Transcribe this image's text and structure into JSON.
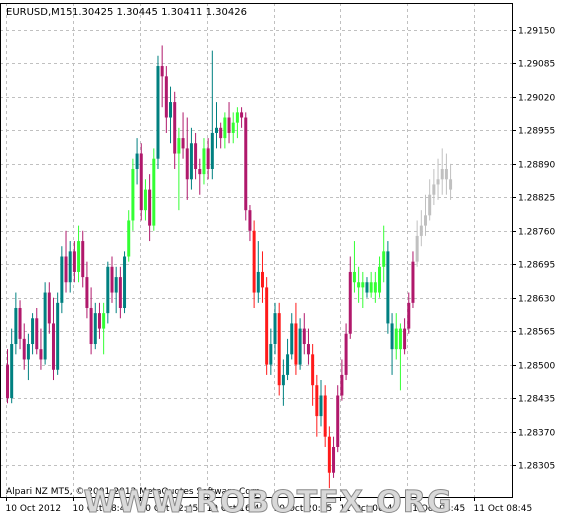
{
  "header": {
    "symbol_timeframe": "EURUSD,M15",
    "ohlc": "1.30425 1.30445 1.30411 1.30426"
  },
  "footer": {
    "copyright": "Alpari NZ MT5, © 2001-2012 MetaQuotes Software Corp.",
    "watermark": "WWW.ROBOTFX.ORG"
  },
  "colors": {
    "background": "#ffffff",
    "grid": "#c0c0c0",
    "axis": "#000000",
    "bull_strong": "#33ff33",
    "bull_weak": "#008080",
    "bear_strong": "#ff1a1a",
    "bear_weak": "#b0186b",
    "neutral": "#c0c0c0"
  },
  "chart_data": {
    "type": "candlestick",
    "ylim": [
      1.2825,
      1.292
    ],
    "y_ticks": [
      "1.29150",
      "1.29085",
      "1.29020",
      "1.28955",
      "1.28890",
      "1.28825",
      "1.28760",
      "1.28695",
      "1.28630",
      "1.28565",
      "1.28500",
      "1.28435",
      "1.28370",
      "1.28305"
    ],
    "x_ticks": [
      {
        "label": "10 Oct 2012",
        "index": 0
      },
      {
        "label": "10 Oct 08:45",
        "index": 16
      },
      {
        "label": "10 Oct 12:45",
        "index": 32
      },
      {
        "label": "10 Oct 16:45",
        "index": 48
      },
      {
        "label": "10 Oct 20:45",
        "index": 64
      },
      {
        "label": "11 Oct 00:45",
        "index": 80
      },
      {
        "label": "11 Oct 04:45",
        "index": 96
      },
      {
        "label": "11 Oct 08:45",
        "index": 112
      }
    ],
    "grid": true,
    "candles": [
      [
        1.285,
        1.2853,
        1.28425,
        1.28435,
        "bear_weak"
      ],
      [
        1.28435,
        1.2857,
        1.28425,
        1.2854,
        "bull_weak"
      ],
      [
        1.2854,
        1.2864,
        1.2852,
        1.2861,
        "bull_weak"
      ],
      [
        1.2861,
        1.28625,
        1.2853,
        1.2855,
        "bear_weak"
      ],
      [
        1.2855,
        1.2858,
        1.2849,
        1.2851,
        "bear_weak"
      ],
      [
        1.2851,
        1.2856,
        1.2847,
        1.2854,
        "bull_weak"
      ],
      [
        1.2854,
        1.286,
        1.2852,
        1.2859,
        "bull_weak"
      ],
      [
        1.2859,
        1.2861,
        1.2852,
        1.2853,
        "bear_weak"
      ],
      [
        1.2853,
        1.2857,
        1.2849,
        1.2851,
        "bear_weak"
      ],
      [
        1.2851,
        1.2866,
        1.285,
        1.2864,
        "bull_weak"
      ],
      [
        1.2864,
        1.2866,
        1.2856,
        1.2858,
        "bear_weak"
      ],
      [
        1.2858,
        1.2863,
        1.2847,
        1.2849,
        "bear_weak"
      ],
      [
        1.2849,
        1.2864,
        1.2848,
        1.2862,
        "bull_weak"
      ],
      [
        1.2862,
        1.2873,
        1.286,
        1.2871,
        "bull_weak"
      ],
      [
        1.2871,
        1.2876,
        1.2864,
        1.2866,
        "bear_weak"
      ],
      [
        1.2866,
        1.2874,
        1.2864,
        1.2872,
        "bull_weak"
      ],
      [
        1.2872,
        1.2874,
        1.2866,
        1.2868,
        "bear_weak"
      ],
      [
        1.2868,
        1.2877,
        1.2866,
        1.2874,
        "bull_strong"
      ],
      [
        1.2874,
        1.2876,
        1.2865,
        1.2867,
        "bear_weak"
      ],
      [
        1.2867,
        1.287,
        1.2859,
        1.2861,
        "bear_weak"
      ],
      [
        1.2861,
        1.2865,
        1.2852,
        1.2854,
        "bear_weak"
      ],
      [
        1.2854,
        1.2862,
        1.2853,
        1.286,
        "bull_weak"
      ],
      [
        1.286,
        1.2862,
        1.2855,
        1.2857,
        "bear_weak"
      ],
      [
        1.2857,
        1.2862,
        1.2852,
        1.286,
        "bull_strong"
      ],
      [
        1.286,
        1.287,
        1.2858,
        1.2869,
        "bull_weak"
      ],
      [
        1.2869,
        1.2871,
        1.2862,
        1.2864,
        "bear_weak"
      ],
      [
        1.2864,
        1.2869,
        1.286,
        1.2867,
        "bull_weak"
      ],
      [
        1.2867,
        1.2869,
        1.2859,
        1.2861,
        "bear_weak"
      ],
      [
        1.2861,
        1.2872,
        1.286,
        1.2871,
        "bull_weak"
      ],
      [
        1.2871,
        1.288,
        1.287,
        1.2878,
        "bull_strong"
      ],
      [
        1.2878,
        1.289,
        1.2876,
        1.2888,
        "bull_strong"
      ],
      [
        1.2888,
        1.2894,
        1.2885,
        1.2891,
        "bull_weak"
      ],
      [
        1.2891,
        1.2893,
        1.2878,
        1.288,
        "bear_weak"
      ],
      [
        1.288,
        1.2886,
        1.2878,
        1.2884,
        "bull_strong"
      ],
      [
        1.2884,
        1.2887,
        1.2874,
        1.2877,
        "bear_weak"
      ],
      [
        1.2877,
        1.2892,
        1.2876,
        1.289,
        "bull_strong"
      ],
      [
        1.289,
        1.291,
        1.2888,
        1.2908,
        "bull_weak"
      ],
      [
        1.2908,
        1.2912,
        1.29,
        1.2906,
        "bear_weak"
      ],
      [
        1.2906,
        1.2908,
        1.2895,
        1.2898,
        "bear_weak"
      ],
      [
        1.2898,
        1.2904,
        1.2893,
        1.2901,
        "bull_weak"
      ],
      [
        1.2901,
        1.2903,
        1.2888,
        1.2891,
        "bear_weak"
      ],
      [
        1.2891,
        1.2896,
        1.288,
        1.2894,
        "bull_strong"
      ],
      [
        1.2894,
        1.2899,
        1.289,
        1.2892,
        "bear_weak"
      ],
      [
        1.2892,
        1.2898,
        1.2882,
        1.2886,
        "bear_weak"
      ],
      [
        1.2886,
        1.2896,
        1.2884,
        1.2893,
        "bull_weak"
      ],
      [
        1.2893,
        1.2895,
        1.2886,
        1.2888,
        "bear_weak"
      ],
      [
        1.2888,
        1.289,
        1.2883,
        1.2887,
        "bear_weak"
      ],
      [
        1.2887,
        1.2894,
        1.2885,
        1.2892,
        "bull_strong"
      ],
      [
        1.2892,
        1.2894,
        1.2886,
        1.2888,
        "bear_weak"
      ],
      [
        1.2888,
        1.2911,
        1.2886,
        1.2895,
        "bull_weak"
      ],
      [
        1.2895,
        1.2901,
        1.2892,
        1.2896,
        "bull_weak"
      ],
      [
        1.2896,
        1.2897,
        1.2892,
        1.2894,
        "bear_weak"
      ],
      [
        1.2894,
        1.2899,
        1.2892,
        1.2898,
        "bull_strong"
      ],
      [
        1.2898,
        1.2901,
        1.2893,
        1.2895,
        "bear_weak"
      ],
      [
        1.2895,
        1.2899,
        1.2893,
        1.2897,
        "bull_strong"
      ],
      [
        1.2897,
        1.29,
        1.2894,
        1.2899,
        "bull_strong"
      ],
      [
        1.2899,
        1.29,
        1.2896,
        1.2898,
        "bear_weak"
      ],
      [
        1.2898,
        1.2899,
        1.2878,
        1.288,
        "bear_weak"
      ],
      [
        1.288,
        1.2881,
        1.2874,
        1.2876,
        "bear_weak"
      ],
      [
        1.2876,
        1.2878,
        1.2861,
        1.2864,
        "bear_strong"
      ],
      [
        1.2864,
        1.2874,
        1.2862,
        1.2868,
        "bull_weak"
      ],
      [
        1.2868,
        1.2872,
        1.2862,
        1.2865,
        "bear_strong"
      ],
      [
        1.2865,
        1.2867,
        1.2848,
        1.285,
        "bear_strong"
      ],
      [
        1.285,
        1.2857,
        1.2848,
        1.2854,
        "bull_weak"
      ],
      [
        1.2854,
        1.2862,
        1.2852,
        1.286,
        "bull_weak"
      ],
      [
        1.286,
        1.2862,
        1.2844,
        1.2846,
        "bear_strong"
      ],
      [
        1.2846,
        1.2851,
        1.2842,
        1.2848,
        "bull_weak"
      ],
      [
        1.2848,
        1.2855,
        1.2847,
        1.2852,
        "bull_weak"
      ],
      [
        1.2852,
        1.286,
        1.2851,
        1.2858,
        "bull_weak"
      ],
      [
        1.2858,
        1.2862,
        1.2848,
        1.285,
        "bear_strong"
      ],
      [
        1.285,
        1.2859,
        1.2849,
        1.2857,
        "bull_weak"
      ],
      [
        1.2857,
        1.286,
        1.2852,
        1.2854,
        "bear_weak"
      ],
      [
        1.2854,
        1.2857,
        1.285,
        1.2852,
        "bear_weak"
      ],
      [
        1.2852,
        1.2854,
        1.2842,
        1.2846,
        "bear_strong"
      ],
      [
        1.2846,
        1.2848,
        1.2836,
        1.284,
        "bear_strong"
      ],
      [
        1.284,
        1.2847,
        1.2838,
        1.2844,
        "bull_weak"
      ],
      [
        1.2844,
        1.2846,
        1.2834,
        1.2836,
        "bear_strong"
      ],
      [
        1.2836,
        1.2838,
        1.2826,
        1.2829,
        "bear_strong"
      ],
      [
        1.2829,
        1.2836,
        1.2828,
        1.2834,
        "bear_weak"
      ],
      [
        1.2834,
        1.2846,
        1.2833,
        1.2844,
        "bear_weak"
      ],
      [
        1.2844,
        1.2851,
        1.2843,
        1.2848,
        "bear_weak"
      ],
      [
        1.2848,
        1.2858,
        1.2847,
        1.2856,
        "bear_weak"
      ],
      [
        1.2856,
        1.2871,
        1.2855,
        1.2868,
        "bear_weak"
      ],
      [
        1.2868,
        1.2874,
        1.2864,
        1.2866,
        "bull_strong"
      ],
      [
        1.2866,
        1.2869,
        1.2862,
        1.2865,
        "bull_strong"
      ],
      [
        1.2865,
        1.2868,
        1.2861,
        1.2866,
        "bull_strong"
      ],
      [
        1.2866,
        1.2867,
        1.2863,
        1.2864,
        "bull_weak"
      ],
      [
        1.2864,
        1.2868,
        1.2863,
        1.2866,
        "bull_strong"
      ],
      [
        1.2866,
        1.2868,
        1.2862,
        1.2864,
        "bull_strong"
      ],
      [
        1.2864,
        1.2871,
        1.2863,
        1.2869,
        "bull_strong"
      ],
      [
        1.2869,
        1.2877,
        1.2866,
        1.2872,
        "bull_strong"
      ],
      [
        1.2872,
        1.2874,
        1.2856,
        1.2858,
        "bull_weak"
      ],
      [
        1.2858,
        1.286,
        1.2848,
        1.2853,
        "bull_weak"
      ],
      [
        1.2853,
        1.286,
        1.2851,
        1.2857,
        "bull_strong"
      ],
      [
        1.2857,
        1.2858,
        1.2845,
        1.2853,
        "bull_strong"
      ],
      [
        1.2853,
        1.2859,
        1.2852,
        1.2857,
        "bear_weak"
      ],
      [
        1.2857,
        1.2864,
        1.2856,
        1.2862,
        "bear_weak"
      ],
      [
        1.2862,
        1.2872,
        1.2861,
        1.287,
        "bear_weak"
      ],
      [
        1.287,
        1.2878,
        1.2869,
        1.2875,
        "neutral"
      ],
      [
        1.2875,
        1.288,
        1.2873,
        1.2877,
        "neutral"
      ],
      [
        1.2877,
        1.2883,
        1.2875,
        1.2879,
        "neutral"
      ],
      [
        1.2879,
        1.2886,
        1.2878,
        1.2883,
        "neutral"
      ],
      [
        1.2883,
        1.2888,
        1.2881,
        1.2885,
        "neutral"
      ],
      [
        1.2885,
        1.289,
        1.2882,
        1.2886,
        "neutral"
      ],
      [
        1.2886,
        1.2892,
        1.2883,
        1.2888,
        "neutral"
      ],
      [
        1.2888,
        1.2891,
        1.2883,
        1.2886,
        "neutral"
      ],
      [
        1.2886,
        1.2889,
        1.2882,
        1.2884,
        "neutral"
      ]
    ]
  }
}
